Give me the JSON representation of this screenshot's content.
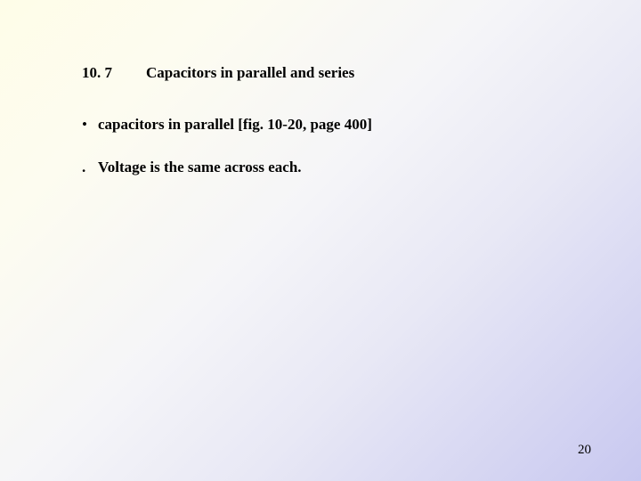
{
  "slide": {
    "section_number": "10. 7",
    "section_title": "Capacitors in parallel and series",
    "bullet1_marker": "•",
    "bullet1_text": "capacitors in parallel [fig. 10-20, page 400]",
    "sub1_marker": ".",
    "sub1_text": "Voltage is the same across each.",
    "page_number": "20"
  },
  "style": {
    "background_gradient_start": "#fefde8",
    "background_gradient_end": "#c8c8f0",
    "text_color": "#000000",
    "font_family": "Times New Roman",
    "heading_fontsize": 17,
    "body_fontsize": 17,
    "page_number_fontsize": 15
  }
}
